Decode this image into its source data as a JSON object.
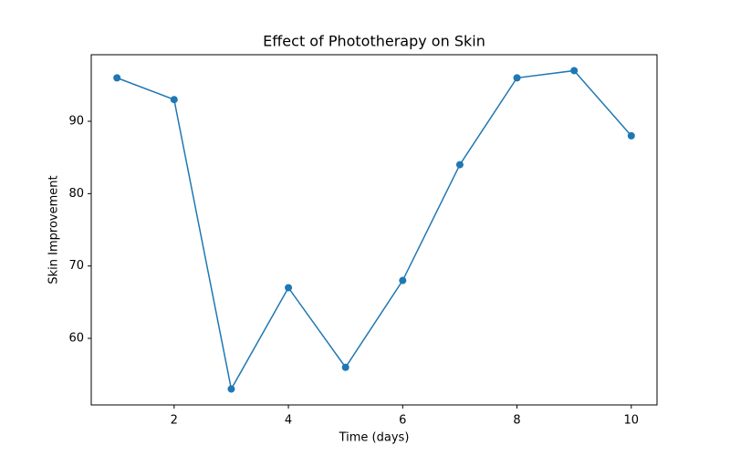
{
  "chart_data": {
    "type": "line",
    "title": "Effect of Phototherapy on Skin",
    "x_label": "Time (days)",
    "y_label": "Skin Improvement",
    "x": [
      1,
      2,
      3,
      4,
      5,
      6,
      7,
      8,
      9,
      10
    ],
    "values": [
      96,
      93,
      53,
      67,
      56,
      68,
      84,
      96,
      97,
      88
    ],
    "color": "#1f77b4",
    "markers": true,
    "xlim": [
      0.55,
      10.45
    ],
    "xticks": [
      2,
      4,
      6,
      8,
      10
    ],
    "ylim": [
      50.8,
      99.2
    ],
    "yticks": [
      60,
      70,
      80,
      90
    ],
    "grid": false
  }
}
